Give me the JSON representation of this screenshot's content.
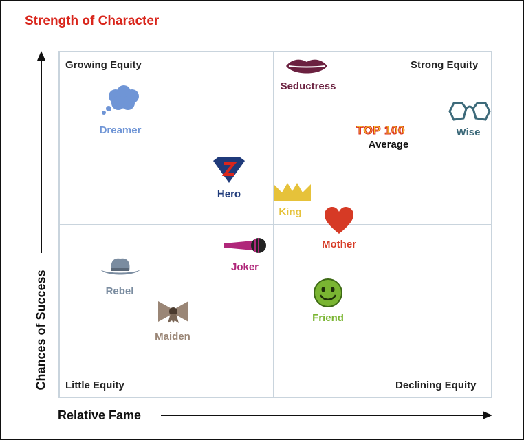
{
  "title": "Strength of Character",
  "colors": {
    "title": "#d9261c",
    "grid": "#c9d4dd",
    "axis": "#111111"
  },
  "chart_data": {
    "type": "scatter",
    "title": "Strength of Character",
    "xlabel": "Relative Fame",
    "ylabel": "Chances of Success",
    "grid": true,
    "quadrants": {
      "top_left": "Growing Equity",
      "top_right": "Strong Equity",
      "bottom_left": "Little Equity",
      "bottom_right": "Declining Equity"
    },
    "series": [
      {
        "label": "Seductress",
        "icon": "lips-icon",
        "color": "#6b2140",
        "x": 0.58,
        "y": 0.86
      },
      {
        "label": "Dreamer",
        "icon": "thought-cloud-icon",
        "color": "#6f95d6",
        "x": 0.14,
        "y": 0.78
      },
      {
        "label": "Average",
        "badge": "TOP 100",
        "icon": "top100-badge",
        "color": "#111111",
        "x": 0.75,
        "y": 0.74
      },
      {
        "label": "Wise",
        "icon": "glasses-icon",
        "color": "#3d6a7a",
        "x": 0.96,
        "y": 0.77
      },
      {
        "label": "Hero",
        "icon": "superhero-emblem-icon",
        "color": "#1f3a7a",
        "x": 0.4,
        "y": 0.59
      },
      {
        "label": "King",
        "icon": "crown-icon",
        "color": "#e6c23a",
        "x": 0.52,
        "y": 0.54
      },
      {
        "label": "Mother",
        "icon": "heart-icon",
        "color": "#d63a25",
        "x": 0.65,
        "y": 0.49
      },
      {
        "label": "Joker",
        "icon": "microphone-icon",
        "color": "#b0277a",
        "x": 0.43,
        "y": 0.4
      },
      {
        "label": "Rebel",
        "icon": "cowboy-hat-icon",
        "color": "#7a8ca0",
        "x": 0.14,
        "y": 0.34
      },
      {
        "label": "Friend",
        "icon": "smiley-icon",
        "color": "#7ab532",
        "x": 0.62,
        "y": 0.3
      },
      {
        "label": "Maiden",
        "icon": "bow-icon",
        "color": "#9a8676",
        "x": 0.27,
        "y": 0.19
      }
    ]
  }
}
